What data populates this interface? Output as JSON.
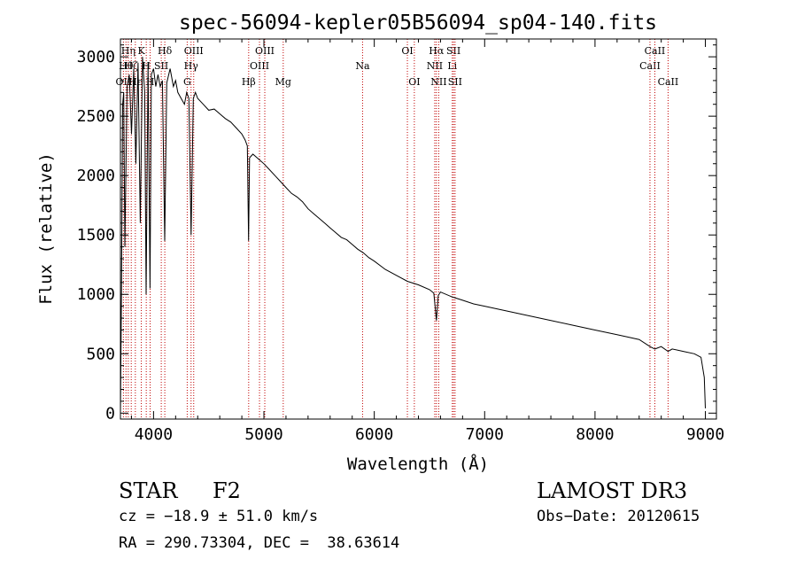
{
  "chart_data": {
    "type": "line",
    "title": "spec-56094-kepler05B56094_sp04-140.fits",
    "xlabel": "Wavelength (Å)",
    "ylabel": "Flux (relative)",
    "xlim": [
      3700,
      9100
    ],
    "ylim": [
      -50,
      3150
    ],
    "xticks": [
      4000,
      5000,
      6000,
      7000,
      8000,
      9000
    ],
    "yticks": [
      0,
      500,
      1000,
      1500,
      2000,
      2500,
      3000
    ],
    "grid": false,
    "series": [
      {
        "name": "flux",
        "x": [
          3700,
          3710,
          3720,
          3730,
          3740,
          3760,
          3780,
          3800,
          3820,
          3840,
          3860,
          3880,
          3900,
          3920,
          3933,
          3950,
          3968,
          3980,
          4000,
          4020,
          4040,
          4060,
          4080,
          4101,
          4120,
          4150,
          4180,
          4200,
          4220,
          4250,
          4280,
          4300,
          4320,
          4340,
          4360,
          4380,
          4400,
          4450,
          4500,
          4550,
          4600,
          4650,
          4700,
          4750,
          4800,
          4830,
          4850,
          4861,
          4870,
          4900,
          4950,
          5000,
          5050,
          5100,
          5150,
          5200,
          5250,
          5300,
          5350,
          5400,
          5450,
          5500,
          5550,
          5600,
          5650,
          5700,
          5750,
          5800,
          5850,
          5900,
          5950,
          6000,
          6100,
          6200,
          6300,
          6400,
          6500,
          6540,
          6563,
          6580,
          6600,
          6700,
          6800,
          6900,
          7000,
          7200,
          7400,
          7600,
          7800,
          8000,
          8200,
          8400,
          8498,
          8542,
          8600,
          8662,
          8700,
          8800,
          8900,
          8960,
          8990,
          9000
        ],
        "y": [
          0,
          1050,
          2600,
          2700,
          1400,
          2750,
          2850,
          2350,
          2900,
          2100,
          2950,
          1600,
          3000,
          2700,
          1000,
          2950,
          1050,
          2850,
          2900,
          2750,
          2850,
          2750,
          2800,
          1450,
          2780,
          2900,
          2750,
          2800,
          2700,
          2650,
          2600,
          2700,
          2650,
          1500,
          2650,
          2700,
          2650,
          2600,
          2550,
          2560,
          2520,
          2480,
          2450,
          2400,
          2350,
          2300,
          2250,
          1450,
          2150,
          2180,
          2140,
          2100,
          2050,
          2000,
          1950,
          1900,
          1850,
          1820,
          1780,
          1720,
          1680,
          1640,
          1600,
          1560,
          1520,
          1480,
          1460,
          1420,
          1380,
          1350,
          1310,
          1280,
          1210,
          1160,
          1110,
          1080,
          1040,
          1010,
          780,
          990,
          1020,
          980,
          950,
          920,
          900,
          860,
          820,
          780,
          740,
          700,
          660,
          620,
          560,
          540,
          560,
          520,
          540,
          520,
          500,
          470,
          300,
          40
        ]
      }
    ],
    "lines": [
      {
        "name": "OII",
        "wave": 3727,
        "row": 2
      },
      {
        "name": "Hθ",
        "wave": 3750,
        "row": 1
      },
      {
        "name": "Hη",
        "wave": 3771,
        "row": 0
      },
      {
        "name": "Hζ",
        "wave": 3798,
        "row": 1
      },
      {
        "name": "Hε",
        "wave": 3835,
        "row": 2
      },
      {
        "name": "K",
        "wave": 3889,
        "row": 0
      },
      {
        "name": "H",
        "wave": 3934,
        "row": 1
      },
      {
        "name": "H",
        "wave": 3969,
        "row": 2
      },
      {
        "name": "SII",
        "wave": 4070,
        "row": 1
      },
      {
        "name": "Hδ",
        "wave": 4102,
        "row": 0
      },
      {
        "name": "G",
        "wave": 4305,
        "row": 2
      },
      {
        "name": "Hγ",
        "wave": 4340,
        "row": 1
      },
      {
        "name": "OIII",
        "wave": 4364,
        "row": 0
      },
      {
        "name": "Hβ",
        "wave": 4862,
        "row": 2
      },
      {
        "name": "OIII",
        "wave": 4960,
        "row": 1
      },
      {
        "name": "OIII",
        "wave": 5008,
        "row": 0
      },
      {
        "name": "Mg",
        "wave": 5175,
        "row": 2
      },
      {
        "name": "Na",
        "wave": 5894,
        "row": 1
      },
      {
        "name": "OI",
        "wave": 6300,
        "row": 0
      },
      {
        "name": "OI",
        "wave": 6363,
        "row": 2
      },
      {
        "name": "NII",
        "wave": 6548,
        "row": 1
      },
      {
        "name": "Hα",
        "wave": 6563,
        "row": 0
      },
      {
        "name": "NII",
        "wave": 6584,
        "row": 2
      },
      {
        "name": "Li",
        "wave": 6707,
        "row": 1
      },
      {
        "name": "SII",
        "wave": 6718,
        "row": 0
      },
      {
        "name": "SII",
        "wave": 6732,
        "row": 2
      },
      {
        "name": "CaII",
        "wave": 8498,
        "row": 1
      },
      {
        "name": "CaII",
        "wave": 8542,
        "row": 0
      },
      {
        "name": "CaII",
        "wave": 8662,
        "row": 2
      }
    ]
  },
  "info": {
    "object_type": "STAR",
    "subclass": "F2",
    "survey": "LAMOST DR3",
    "cz": "cz = −18.9 ± 51.0 km/s",
    "obs_date": "Obs−Date: 20120615",
    "coords": "RA = 290.73304, DEC =  38.63614"
  }
}
